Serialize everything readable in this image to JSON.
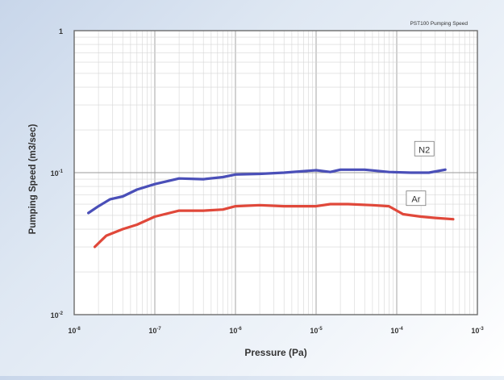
{
  "chart_data": {
    "type": "line",
    "title": "PST100  Pumping Speed",
    "xlabel": "Pressure (Pa)",
    "ylabel": "Pumping Speed (m3/sec)",
    "x_scale": "log",
    "y_scale": "log",
    "xlim": [
      1e-08,
      0.001
    ],
    "ylim": [
      0.01,
      1
    ],
    "x_ticks": [
      1e-08,
      1e-07,
      1e-06,
      1e-05,
      0.0001,
      0.001
    ],
    "x_tick_labels": [
      {
        "base": "10",
        "exp": "-8"
      },
      {
        "base": "10",
        "exp": "-7"
      },
      {
        "base": "10",
        "exp": "-6"
      },
      {
        "base": "10",
        "exp": "-5"
      },
      {
        "base": "10",
        "exp": "-4"
      },
      {
        "base": "10",
        "exp": "-3"
      }
    ],
    "y_ticks": [
      0.01,
      0.1,
      1
    ],
    "y_tick_labels": [
      {
        "base": "10",
        "exp": "-2"
      },
      {
        "base": "10",
        "exp": "-1"
      },
      {
        "base": "1",
        "exp": ""
      }
    ],
    "grid": true,
    "series": [
      {
        "name": "N2",
        "color": "#4a4fb8",
        "points": [
          [
            1.5e-08,
            0.052
          ],
          [
            2e-08,
            0.058
          ],
          [
            2.8e-08,
            0.065
          ],
          [
            4e-08,
            0.068
          ],
          [
            6e-08,
            0.076
          ],
          [
            1e-07,
            0.083
          ],
          [
            2e-07,
            0.091
          ],
          [
            4e-07,
            0.09
          ],
          [
            7e-07,
            0.093
          ],
          [
            1e-06,
            0.097
          ],
          [
            2e-06,
            0.098
          ],
          [
            4e-06,
            0.1
          ],
          [
            1e-05,
            0.104
          ],
          [
            1.5e-05,
            0.101
          ],
          [
            2e-05,
            0.105
          ],
          [
            4e-05,
            0.105
          ],
          [
            8e-05,
            0.101
          ],
          [
            0.00015,
            0.1
          ],
          [
            0.00025,
            0.1
          ],
          [
            0.0004,
            0.105
          ]
        ]
      },
      {
        "name": "Ar",
        "color": "#e0483a",
        "points": [
          [
            1.8e-08,
            0.03
          ],
          [
            2.5e-08,
            0.036
          ],
          [
            4e-08,
            0.04
          ],
          [
            6e-08,
            0.043
          ],
          [
            1e-07,
            0.049
          ],
          [
            2e-07,
            0.054
          ],
          [
            4e-07,
            0.054
          ],
          [
            7e-07,
            0.055
          ],
          [
            1e-06,
            0.058
          ],
          [
            2e-06,
            0.059
          ],
          [
            4e-06,
            0.058
          ],
          [
            1e-05,
            0.058
          ],
          [
            1.5e-05,
            0.06
          ],
          [
            2.5e-05,
            0.06
          ],
          [
            5e-05,
            0.059
          ],
          [
            8e-05,
            0.058
          ],
          [
            0.00012,
            0.051
          ],
          [
            0.0002,
            0.049
          ],
          [
            0.0003,
            0.048
          ],
          [
            0.0005,
            0.047
          ]
        ]
      }
    ]
  }
}
